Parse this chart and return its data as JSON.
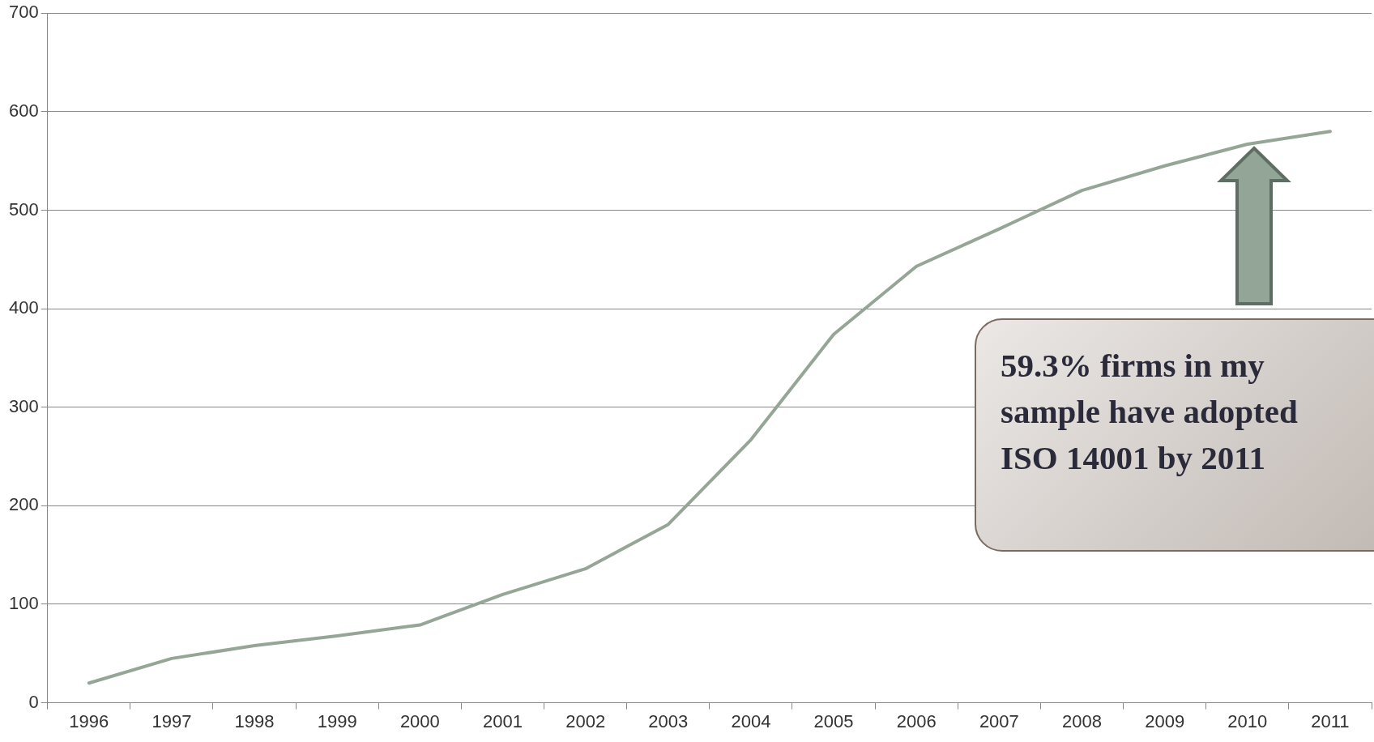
{
  "chart_data": {
    "type": "line",
    "categories": [
      "1996",
      "1997",
      "1998",
      "1999",
      "2000",
      "2001",
      "2002",
      "2003",
      "2004",
      "2005",
      "2006",
      "2007",
      "2008",
      "2009",
      "2010",
      "2011"
    ],
    "series": [
      {
        "color": "#95a596",
        "values": [
          20,
          45,
          58,
          68,
          79,
          110,
          136,
          181,
          267,
          374,
          443,
          481,
          520,
          545,
          567,
          580
        ]
      }
    ],
    "ylim": [
      0,
      700
    ],
    "yticks": [
      0,
      100,
      200,
      300,
      400,
      500,
      600,
      700
    ],
    "grid": "y",
    "legend": false,
    "marker": "none",
    "line_style": "solid",
    "annotations": [
      "59.3% firms in my sample have adopted ISO 14001 by 2011"
    ]
  }
}
